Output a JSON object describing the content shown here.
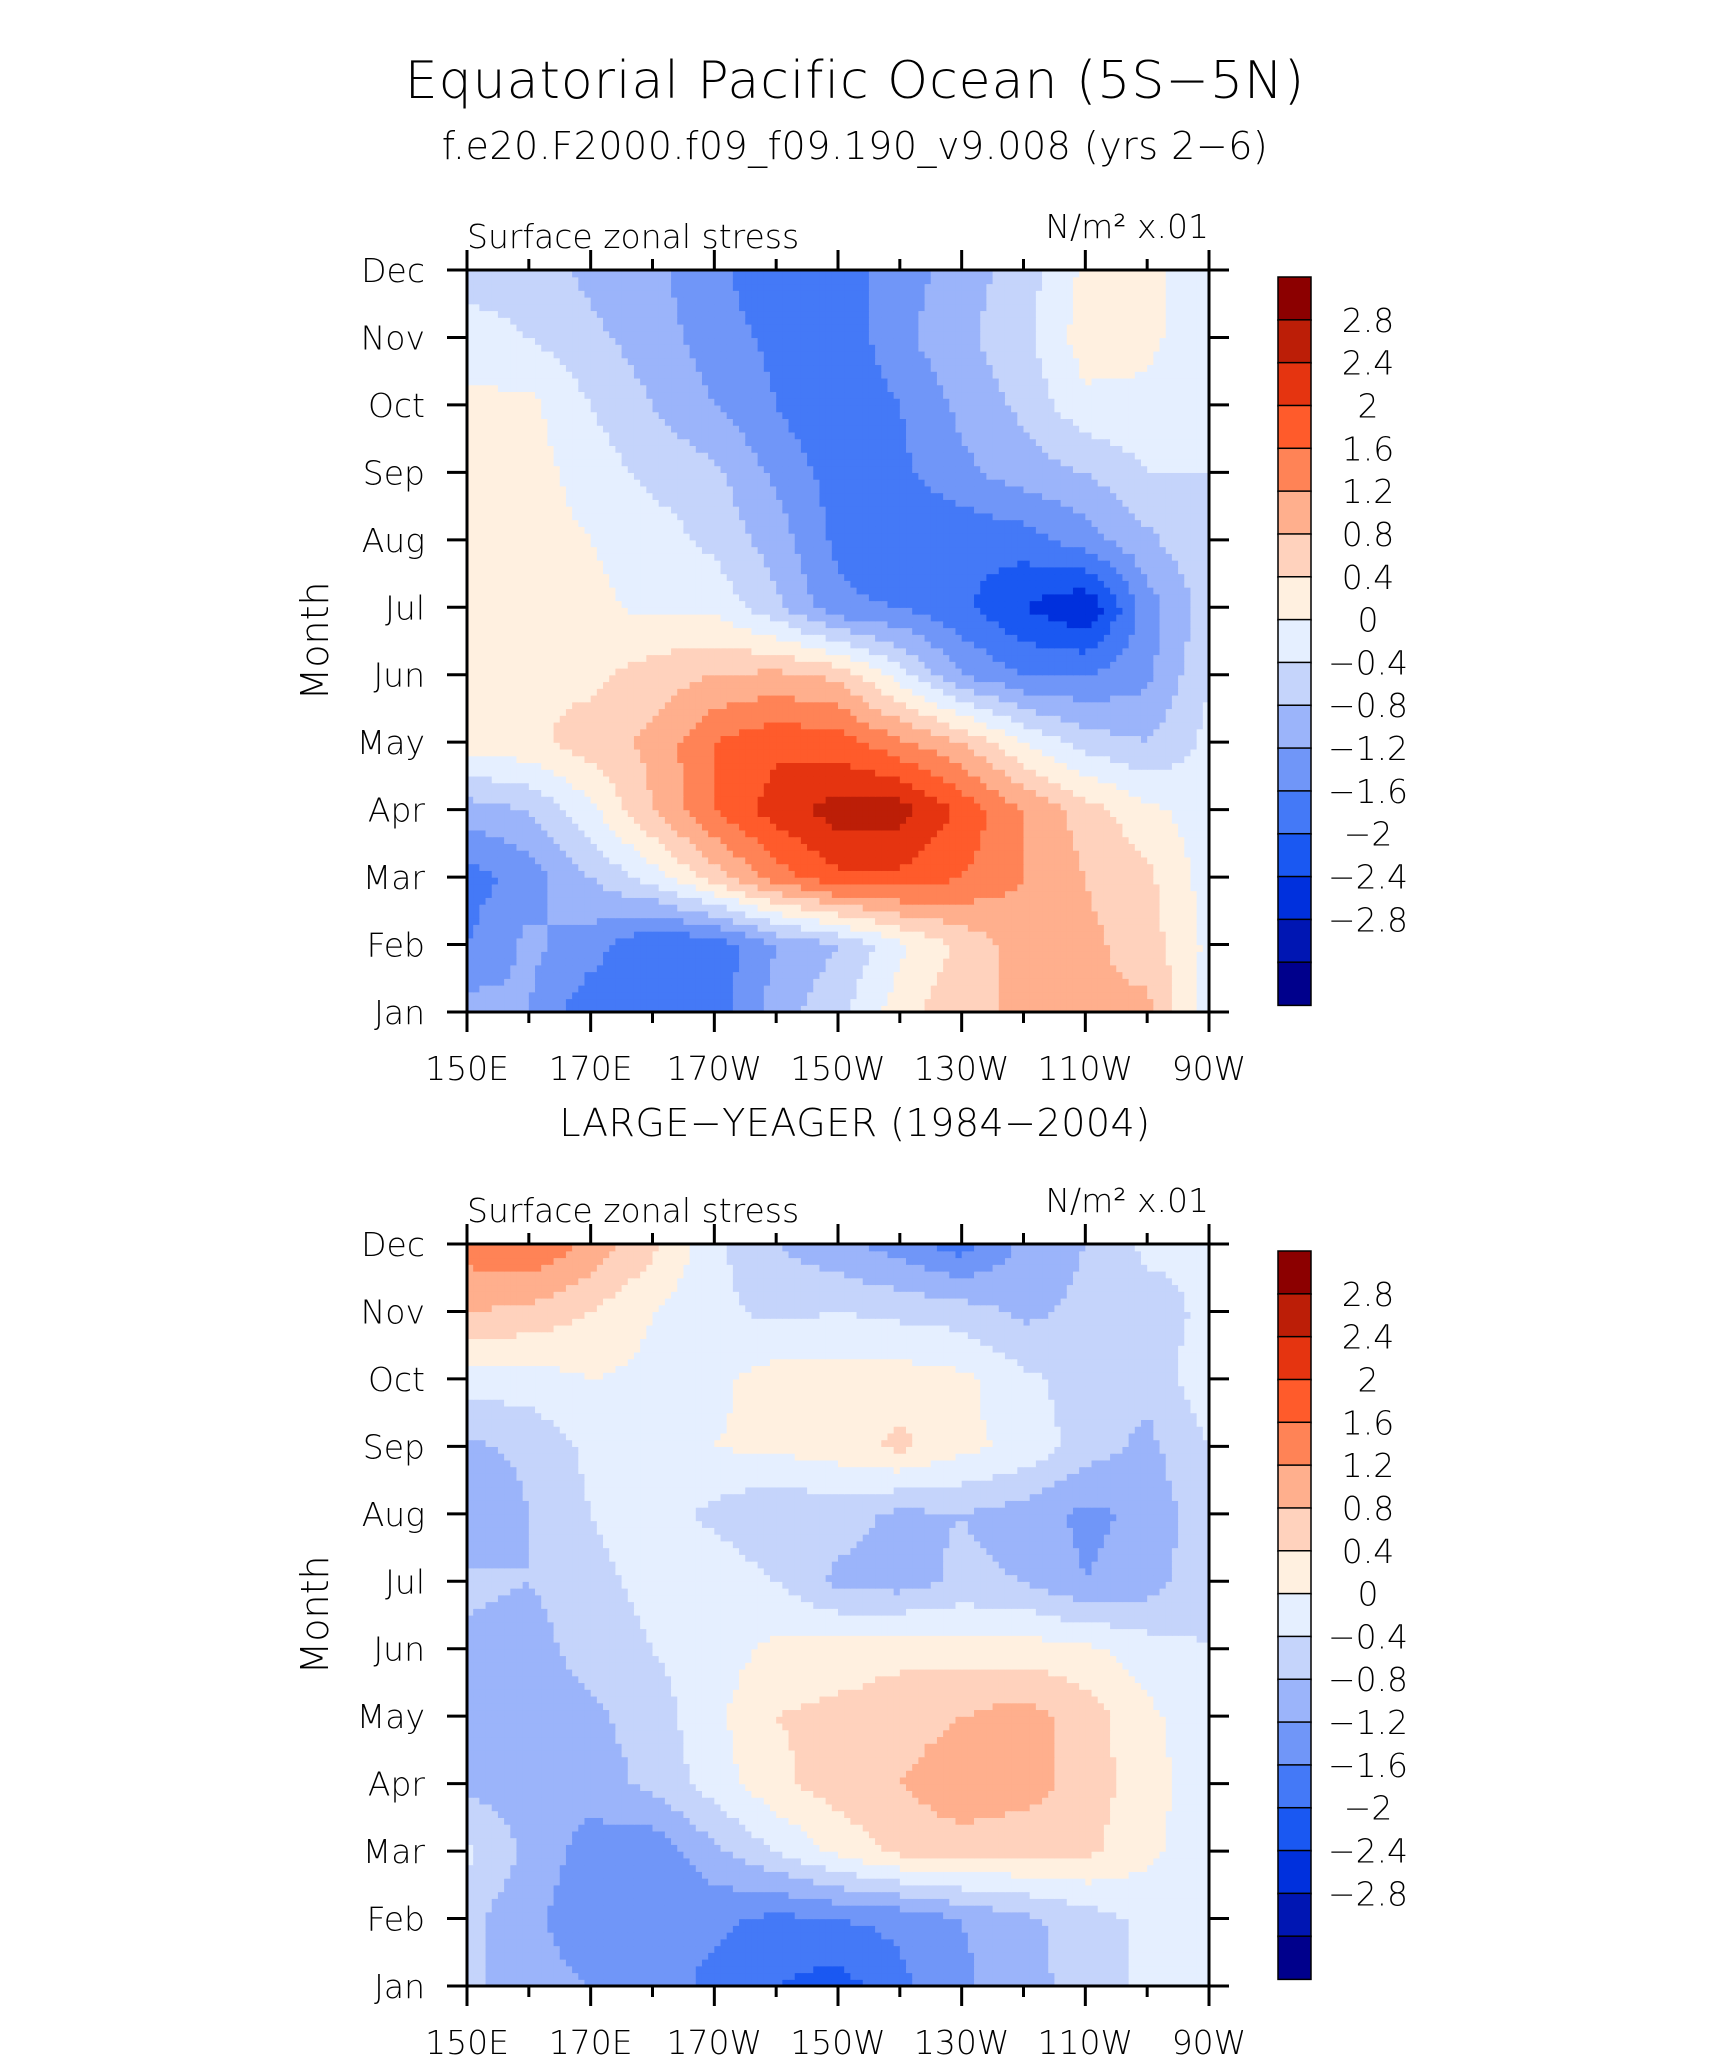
{
  "figure": {
    "title": "Equatorial Pacific Ocean (5S−5N)",
    "colors": [
      "#00008c",
      "#0016b3",
      "#0030dd",
      "#1a58f2",
      "#4479f7",
      "#7096f8",
      "#9bb4fa",
      "#c5d4fb",
      "#e5efff",
      "#fff0e0",
      "#ffd2bd",
      "#ffaf8d",
      "#ff8356",
      "#ff5b2b",
      "#e53410",
      "#bc1e07",
      "#8c0000"
    ],
    "levels": [
      -2.8,
      -2.4,
      -2,
      -1.6,
      -1.2,
      -0.8,
      -0.4,
      0,
      0.4,
      0.8,
      1.2,
      1.6,
      2,
      2.4,
      2.8
    ]
  },
  "chart_data": [
    {
      "type": "heatmap",
      "title": "f.e20.F2000.f09_f09.190_v9.008 (yrs 2−6)",
      "left_label": "Surface zonal stress",
      "right_label": "N/m² x.01",
      "xlabel": "",
      "ylabel": "Month",
      "xlim": [
        150,
        270
      ],
      "x_tick_labels": [
        "150E",
        "170E",
        "170W",
        "150W",
        "130W",
        "110W",
        "90W"
      ],
      "y_tick_labels": [
        "Jan",
        "Feb",
        "Mar",
        "Apr",
        "May",
        "Jun",
        "Jul",
        "Aug",
        "Sep",
        "Oct",
        "Nov",
        "Dec"
      ],
      "colorbar_labels": [
        "2.8",
        "2.4",
        "2",
        "1.6",
        "1.2",
        "0.8",
        "0.4",
        "0",
        "−0.4",
        "−0.8",
        "−1.2",
        "−1.6",
        "−2",
        "−2.4",
        "−2.8"
      ],
      "x": [
        150,
        160,
        170,
        180,
        190,
        200,
        210,
        220,
        230,
        240,
        250,
        260,
        270
      ],
      "rows": [
        [
          -0.6,
          -0.8,
          -1.5,
          -1.6,
          -1.4,
          -0.6,
          -0.1,
          0.6,
          1.2,
          1.2,
          1.3,
          1.3,
          0.2
        ],
        [
          -1.2,
          -0.7,
          -1.0,
          -1.6,
          -1.5,
          -0.8,
          -0.4,
          0.3,
          0.9,
          1.4,
          1.3,
          1.0,
          0.3
        ],
        [
          -1.4,
          -1.0,
          -0.4,
          0.2,
          1.0,
          1.8,
          2.3,
          2.3,
          2.0,
          1.6,
          1.2,
          0.9,
          0.2
        ],
        [
          -0.6,
          -0.4,
          0.3,
          1.2,
          2.0,
          2.6,
          3.0,
          3.0,
          2.3,
          1.6,
          1.0,
          0.5,
          0.2
        ],
        [
          0.6,
          0.7,
          1.0,
          1.3,
          2.0,
          2.3,
          2.2,
          1.7,
          1.2,
          0.4,
          -0.2,
          -0.4,
          0.1
        ],
        [
          0.6,
          0.7,
          0.7,
          1.0,
          1.2,
          1.3,
          1.1,
          0.2,
          -0.8,
          -1.2,
          -1.2,
          -0.9,
          0.0
        ],
        [
          0.6,
          0.6,
          0.5,
          0.3,
          0.3,
          -0.3,
          -1.1,
          -1.2,
          -1.5,
          -2.0,
          -2.4,
          -1.0,
          -0.2
        ],
        [
          0.6,
          0.6,
          0.4,
          0.2,
          -0.1,
          -0.6,
          -1.3,
          -1.6,
          -1.5,
          -1.4,
          -1.0,
          -0.5,
          0.0
        ],
        [
          0.5,
          0.6,
          0.2,
          -0.1,
          -0.3,
          -0.9,
          -1.4,
          -1.3,
          -0.9,
          -0.6,
          -0.4,
          0.0,
          0.0
        ],
        [
          0.5,
          0.5,
          0.0,
          -0.4,
          -0.8,
          -1.2,
          -1.6,
          -1.2,
          -0.7,
          -0.3,
          0.3,
          0.3,
          0.0
        ],
        [
          0.2,
          0.0,
          -0.3,
          -0.6,
          -1.0,
          -1.3,
          -1.5,
          -0.9,
          -0.5,
          -0.1,
          0.6,
          0.5,
          0.1
        ],
        [
          -0.2,
          -0.2,
          -0.5,
          -0.7,
          -1.1,
          -1.5,
          -1.4,
          -1.0,
          -0.6,
          -0.2,
          0.5,
          0.5,
          0.1
        ]
      ]
    },
    {
      "type": "heatmap",
      "title": "LARGE−YEAGER (1984−2004)",
      "left_label": "Surface zonal stress",
      "right_label": "N/m² x.01",
      "xlabel": "",
      "ylabel": "Month",
      "xlim": [
        150,
        270
      ],
      "x_tick_labels": [
        "150E",
        "170E",
        "170W",
        "150W",
        "130W",
        "110W",
        "90W"
      ],
      "y_tick_labels": [
        "Jan",
        "Feb",
        "Mar",
        "Apr",
        "May",
        "Jun",
        "Jul",
        "Aug",
        "Sep",
        "Oct",
        "Nov",
        "Dec"
      ],
      "colorbar_labels": [
        "2.8",
        "2.4",
        "2",
        "1.6",
        "1.2",
        "0.8",
        "0.4",
        "0",
        "−0.4",
        "−0.8",
        "−1.2",
        "−1.6",
        "−2",
        "−2.4",
        "−2.8"
      ],
      "x": [
        150,
        160,
        170,
        180,
        190,
        200,
        210,
        220,
        230,
        240,
        250,
        260,
        270
      ],
      "rows": [
        [
          -0.3,
          -0.6,
          -0.8,
          -1.0,
          -1.3,
          -1.6,
          -1.8,
          -1.3,
          -0.9,
          -0.5,
          -0.3,
          0.1,
          0.1
        ],
        [
          -0.3,
          -0.7,
          -1.1,
          -1.2,
          -1.1,
          -1.3,
          -1.2,
          -1.1,
          -0.8,
          -0.5,
          -0.2,
          0.1,
          0.1
        ],
        [
          0.1,
          -0.5,
          -1.0,
          -1.1,
          -0.5,
          0.0,
          0.5,
          0.9,
          1.0,
          0.9,
          0.9,
          0.5,
          0.1
        ],
        [
          -0.5,
          -0.6,
          -0.6,
          -0.3,
          0.2,
          0.7,
          1.0,
          1.2,
          1.5,
          1.4,
          1.0,
          0.6,
          0.1
        ],
        [
          -0.6,
          -0.7,
          -0.5,
          -0.2,
          0.3,
          0.8,
          0.9,
          1.0,
          1.2,
          1.4,
          1.0,
          0.5,
          0.1
        ],
        [
          -0.5,
          -0.6,
          -0.2,
          0.0,
          0.2,
          0.5,
          0.6,
          0.7,
          0.6,
          0.6,
          0.5,
          0.2,
          0.0
        ],
        [
          -0.3,
          -0.4,
          -0.1,
          0.1,
          0.3,
          0.0,
          -0.5,
          -0.6,
          -0.3,
          -0.4,
          -0.8,
          -0.6,
          -0.1
        ],
        [
          -0.8,
          -0.4,
          0.0,
          0.2,
          -0.1,
          -0.4,
          -0.2,
          -0.5,
          -0.4,
          -0.6,
          -0.9,
          -0.7,
          -0.1
        ],
        [
          -0.5,
          -0.3,
          0.1,
          0.3,
          0.4,
          0.5,
          0.6,
          0.9,
          0.5,
          0.3,
          -0.2,
          -0.5,
          0.0
        ],
        [
          0.2,
          0.2,
          0.4,
          0.3,
          0.3,
          0.6,
          0.6,
          0.6,
          0.5,
          0.1,
          -0.2,
          -0.3,
          0.3
        ],
        [
          1.2,
          1.1,
          0.8,
          0.4,
          0.1,
          -0.1,
          0.0,
          -0.1,
          -0.2,
          -0.5,
          -0.3,
          -0.2,
          0.1
        ],
        [
          1.8,
          2.0,
          1.5,
          0.9,
          0.1,
          -0.4,
          -0.7,
          -1.0,
          -1.4,
          -0.7,
          -0.4,
          0.1,
          0.1
        ]
      ]
    }
  ]
}
